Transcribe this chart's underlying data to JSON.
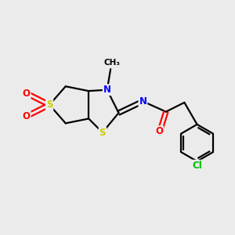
{
  "background_color": "#ebebeb",
  "bond_color": "#000000",
  "atom_colors": {
    "S": "#cccc00",
    "O": "#ff0000",
    "N": "#0000ff",
    "Cl": "#00bb00",
    "C": "#000000"
  }
}
